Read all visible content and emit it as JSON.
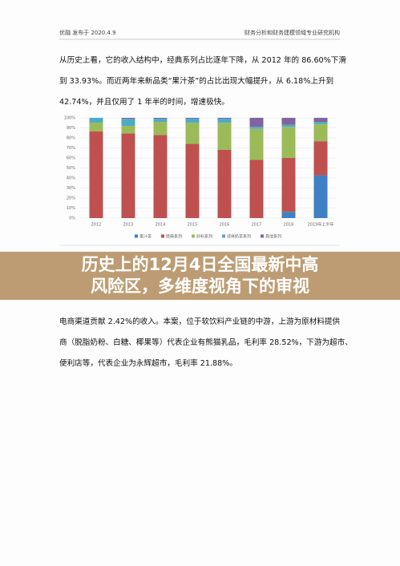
{
  "header": {
    "left": "优融 发布于 2020.4.9",
    "right": "财务分析和财务建模领域专业研究机构"
  },
  "paragraph1": [
    "从历史上看，它的收入结构中，经典系列占比逐年下降，从 2012 年的 86.60%下滑",
    "到 33.93%。而近两年来新品类“果汁茶”的占比出现大幅提升，从 6.18%上升到",
    "42.74%，并且仅用了 1 年半的时间，增速极快。"
  ],
  "chart_data": {
    "type": "stacked_bar",
    "categories": [
      "2012",
      "2013",
      "2014",
      "2015",
      "2016",
      "2017",
      "2018",
      "2019年上半年"
    ],
    "series": [
      {
        "name": "果汁茶",
        "color": "#3f7fc4",
        "values": [
          0,
          0,
          0,
          0,
          0,
          0,
          6.18,
          42.74
        ]
      },
      {
        "name": "经典系列",
        "color": "#c0504d",
        "values": [
          86.6,
          84.5,
          83,
          74,
          68,
          58,
          53.8,
          33.93
        ]
      },
      {
        "name": "好料系列",
        "color": "#9bbb59",
        "values": [
          8.5,
          7.5,
          13,
          21,
          27,
          31,
          31,
          17.3
        ]
      },
      {
        "name": "液体奶茶系列",
        "color": "#4bacc6",
        "values": [
          4.9,
          7,
          3,
          4,
          4,
          2,
          2,
          2
        ]
      },
      {
        "name": "其他系列",
        "color": "#8064a2",
        "values": [
          0,
          1,
          1,
          1,
          1,
          9,
          7,
          4
        ]
      }
    ],
    "ylim": [
      0,
      100
    ],
    "yticks": [
      {
        "value": 0,
        "label": "0%"
      },
      {
        "value": 10,
        "label": "10%"
      },
      {
        "value": 20,
        "label": "20%"
      },
      {
        "value": 30,
        "label": "30%"
      },
      {
        "value": 40,
        "label": "40%"
      },
      {
        "value": 50,
        "label": "50%"
      },
      {
        "value": 60,
        "label": "60%"
      },
      {
        "value": 70,
        "label": "70%"
      },
      {
        "value": 80,
        "label": "80%"
      },
      {
        "value": 90,
        "label": "90%"
      },
      {
        "value": 100,
        "label": "100%"
      }
    ],
    "grid": true
  },
  "banner": {
    "lines": [
      "历史上的12月4日全国最新中高",
      "风险区，多维度视角下的审视"
    ]
  },
  "paragraph2": [
    "电商渠道贡献 2.42%的收入。本案，位于软饮料产业链的中游，上游为原材料提供",
    "商（脱脂奶粉、白糖、椰果等）代表企业有熊猫乳品，毛利率 28.52%，下游为超市、",
    "便利店等，代表企业为永辉超市，毛利率 21.88%。"
  ]
}
